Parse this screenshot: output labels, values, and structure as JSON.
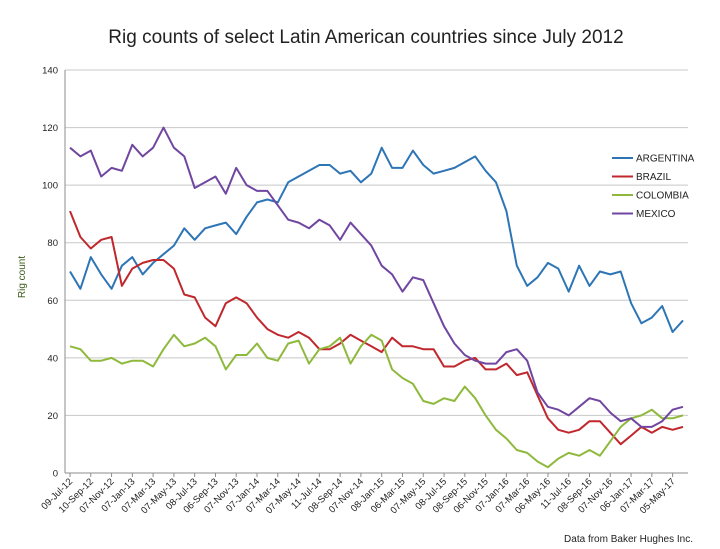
{
  "chart_data": {
    "type": "line",
    "title": "Rig counts of select Latin American countries since July 2012",
    "xlabel": "",
    "ylabel": "Rig count",
    "ylim": [
      0,
      140
    ],
    "yticks": [
      "0",
      "20",
      "40",
      "60",
      "80",
      "100",
      "120",
      "140"
    ],
    "grid": "horizontal",
    "legend_position": "right",
    "source_note": "Data from Baker Hughes Inc.",
    "x": [
      "09-Jul-12",
      "06-Aug-12",
      "10-Sep-12",
      "08-Oct-12",
      "07-Nov-12",
      "07-Dec-12",
      "07-Jan-13",
      "08-Feb-13",
      "07-Mar-13",
      "05-Apr-13",
      "07-May-13",
      "07-Jun-13",
      "08-Jul-13",
      "07-Aug-13",
      "06-Sep-13",
      "07-Oct-13",
      "07-Nov-13",
      "06-Dec-13",
      "07-Jan-14",
      "07-Feb-14",
      "07-Mar-14",
      "07-Apr-14",
      "07-May-14",
      "06-Jun-14",
      "11-Jul-14",
      "08-Aug-14",
      "08-Sep-14",
      "07-Oct-14",
      "07-Nov-14",
      "05-Dec-14",
      "08-Jan-15",
      "06-Feb-15",
      "06-Mar-15",
      "07-Apr-15",
      "07-May-15",
      "05-Jun-15",
      "08-Jul-15",
      "07-Aug-15",
      "08-Sep-15",
      "07-Oct-15",
      "06-Nov-15",
      "07-Dec-15",
      "07-Jan-16",
      "05-Feb-16",
      "07-Mar-16",
      "07-Apr-16",
      "06-May-16",
      "07-Jun-16",
      "11-Jul-16",
      "05-Aug-16",
      "08-Sep-16",
      "07-Oct-16",
      "07-Nov-16",
      "07-Dec-16",
      "06-Jan-17",
      "07-Feb-17",
      "07-Mar-17",
      "07-Apr-17",
      "05-May-17",
      "06-Jun-17"
    ],
    "x_tick_labels": [
      "09-Jul-12",
      "10-Sep-12",
      "07-Nov-12",
      "07-Jan-13",
      "07-Mar-13",
      "07-May-13",
      "08-Jul-13",
      "06-Sep-13",
      "07-Nov-13",
      "07-Jan-14",
      "07-Mar-14",
      "07-May-14",
      "11-Jul-14",
      "08-Sep-14",
      "07-Nov-14",
      "08-Jan-15",
      "06-Mar-15",
      "07-May-15",
      "08-Jul-15",
      "08-Sep-15",
      "06-Nov-15",
      "07-Jan-16",
      "07-Mar-16",
      "06-May-16",
      "11-Jul-16",
      "08-Sep-16",
      "07-Nov-16",
      "06-Jan-17",
      "07-Mar-17",
      "05-May-17"
    ],
    "series": [
      {
        "name": "ARGENTINA",
        "color": "#2e75b6",
        "values": [
          70,
          64,
          75,
          69,
          64,
          72,
          75,
          69,
          73,
          76,
          79,
          85,
          81,
          85,
          86,
          87,
          83,
          89,
          94,
          95,
          94,
          101,
          103,
          105,
          107,
          107,
          104,
          105,
          101,
          104,
          113,
          106,
          106,
          112,
          107,
          104,
          105,
          106,
          108,
          110,
          105,
          101,
          91,
          72,
          65,
          68,
          73,
          71,
          63,
          72,
          65,
          70,
          69,
          70,
          59,
          52,
          54,
          58,
          49,
          53
        ]
      },
      {
        "name": "BRAZIL",
        "color": "#c0282d",
        "values": [
          91,
          82,
          78,
          81,
          82,
          65,
          71,
          73,
          74,
          74,
          71,
          62,
          61,
          54,
          51,
          59,
          61,
          59,
          54,
          50,
          48,
          47,
          49,
          47,
          43,
          43,
          45,
          48,
          46,
          44,
          42,
          47,
          44,
          44,
          43,
          43,
          37,
          37,
          39,
          40,
          36,
          36,
          38,
          34,
          35,
          27,
          19,
          15,
          14,
          15,
          18,
          18,
          14,
          10,
          13,
          16,
          14,
          16,
          15,
          16
        ]
      },
      {
        "name": "COLOMBIA",
        "color": "#8fb93d",
        "values": [
          44,
          43,
          39,
          39,
          40,
          38,
          39,
          39,
          37,
          43,
          48,
          44,
          45,
          47,
          44,
          36,
          41,
          41,
          45,
          40,
          39,
          45,
          46,
          38,
          43,
          44,
          47,
          38,
          44,
          48,
          46,
          36,
          33,
          31,
          25,
          24,
          26,
          25,
          30,
          26,
          20,
          15,
          12,
          8,
          7,
          4,
          2,
          5,
          7,
          6,
          8,
          6,
          11,
          16,
          19,
          20,
          22,
          19,
          19,
          20
        ]
      },
      {
        "name": "MEXICO",
        "color": "#7046a0",
        "values": [
          113,
          110,
          112,
          103,
          106,
          105,
          114,
          110,
          113,
          120,
          113,
          110,
          99,
          101,
          103,
          97,
          106,
          100,
          98,
          98,
          93,
          88,
          87,
          85,
          88,
          86,
          81,
          87,
          83,
          79,
          72,
          69,
          63,
          68,
          67,
          59,
          51,
          45,
          41,
          39,
          38,
          38,
          42,
          43,
          39,
          28,
          23,
          22,
          20,
          23,
          26,
          25,
          21,
          18,
          19,
          16,
          16,
          18,
          22,
          23
        ]
      }
    ]
  }
}
